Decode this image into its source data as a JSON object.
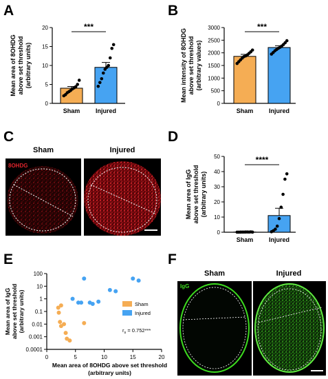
{
  "colors": {
    "sham": "#f5ad54",
    "injured": "#46a3f2",
    "stain_red": "#d0121c",
    "stain_green": "#3ddc1f",
    "axis": "#000000"
  },
  "panels": {
    "A": {
      "letter": "A",
      "significance": "***",
      "ylabel": [
        "Mean area of 8OHDG",
        "above set threshold",
        "(arbitrary units)"
      ]
    },
    "B": {
      "letter": "B",
      "significance": "***",
      "ylabel": [
        "Mean intensity of 8OHDG",
        "above set threshold",
        "(arbitrary values)"
      ]
    },
    "C": {
      "letter": "C",
      "titles": [
        "Sham",
        "Injured"
      ],
      "stain_label": "8OHDG"
    },
    "D": {
      "letter": "D",
      "significance": "****",
      "ylabel": [
        "Mean area of IgG",
        "above set threshold",
        "(arbitrary units)"
      ]
    },
    "E": {
      "letter": "E",
      "ylabel": [
        "Mean area of IgG",
        "above set threshold",
        "(arbitrary units)"
      ],
      "xlabel": [
        "Mean area of 8OHDG above set threshold",
        "(arbitrary units)"
      ],
      "stat_prefix": "r",
      "stat_sub": "s",
      "stat_value": " = 0.752***"
    },
    "F": {
      "letter": "F",
      "titles": [
        "Sham",
        "Injured"
      ],
      "stain_label": "IgG"
    }
  },
  "chart_data": [
    {
      "panel": "A",
      "type": "bar",
      "categories": [
        "Sham",
        "Injured"
      ],
      "ylim": [
        0,
        20
      ],
      "yticks": [
        0,
        5,
        10,
        15,
        20
      ],
      "series": [
        {
          "name": "Sham",
          "mean": 4.0,
          "sem": 0.45,
          "points": [
            2.0,
            2.3,
            2.8,
            3.1,
            3.4,
            3.8,
            4.1,
            4.4,
            5.0,
            6.1
          ]
        },
        {
          "name": "Injured",
          "mean": 9.5,
          "sem": 1.3,
          "points": [
            4.5,
            5.5,
            6.5,
            8.0,
            9.0,
            9.5,
            10.0,
            12.0,
            14.5,
            15.5
          ]
        }
      ]
    },
    {
      "panel": "B",
      "type": "bar",
      "categories": [
        "Sham",
        "Injured"
      ],
      "ylim": [
        0,
        3000
      ],
      "yticks": [
        0,
        500,
        1000,
        1500,
        2000,
        2500,
        3000
      ],
      "series": [
        {
          "name": "Sham",
          "mean": 1860,
          "sem": 80,
          "points": [
            1580,
            1650,
            1720,
            1790,
            1850,
            1880,
            1920,
            1980,
            2040,
            2110
          ]
        },
        {
          "name": "Injured",
          "mean": 2210,
          "sem": 70,
          "points": [
            1950,
            2010,
            2080,
            2130,
            2180,
            2220,
            2270,
            2330,
            2400,
            2480
          ]
        }
      ]
    },
    {
      "panel": "D",
      "type": "bar",
      "categories": [
        "Sham",
        "Injured"
      ],
      "ylim": [
        0,
        50
      ],
      "yticks": [
        0,
        10,
        20,
        30,
        40,
        50
      ],
      "series": [
        {
          "name": "Sham",
          "mean": 0.1,
          "sem": 0.05,
          "points": [
            0.05,
            0.05,
            0.08,
            0.1,
            0.1,
            0.12,
            0.15,
            0.1,
            0.2,
            0.08
          ]
        },
        {
          "name": "Injured",
          "mean": 11,
          "sem": 4.8,
          "points": [
            0.3,
            1.0,
            2.0,
            4.0,
            9.0,
            16.5,
            25.0,
            35.0,
            38.5
          ]
        }
      ]
    },
    {
      "panel": "E",
      "type": "scatter",
      "xlim": [
        0,
        20
      ],
      "xticks": [
        0,
        5,
        10,
        15,
        20
      ],
      "yscale": "log",
      "ylim": [
        0.0001,
        100
      ],
      "ytick_labels": [
        "0.0001",
        "0.001",
        "0.01",
        "0.1",
        "1",
        "10",
        "100"
      ],
      "legend_position": "right",
      "series": [
        {
          "name": "Sham",
          "points": [
            [
              2.0,
              0.2
            ],
            [
              2.5,
              0.3
            ],
            [
              2.1,
              0.08
            ],
            [
              2.3,
              0.015
            ],
            [
              2.5,
              0.007
            ],
            [
              3.0,
              0.01
            ],
            [
              3.3,
              0.002
            ],
            [
              3.5,
              0.0007
            ],
            [
              4.0,
              0.0005
            ],
            [
              6.5,
              0.012
            ]
          ]
        },
        {
          "name": "Injured",
          "points": [
            [
              4.5,
              1.0
            ],
            [
              5.5,
              0.5
            ],
            [
              6.0,
              0.5
            ],
            [
              6.5,
              40.0
            ],
            [
              7.5,
              0.5
            ],
            [
              8.0,
              0.4
            ],
            [
              9.0,
              0.6
            ],
            [
              11.0,
              5.0
            ],
            [
              12.0,
              4.0
            ],
            [
              15.0,
              40.0
            ],
            [
              16.0,
              28.0
            ]
          ]
        }
      ]
    }
  ]
}
